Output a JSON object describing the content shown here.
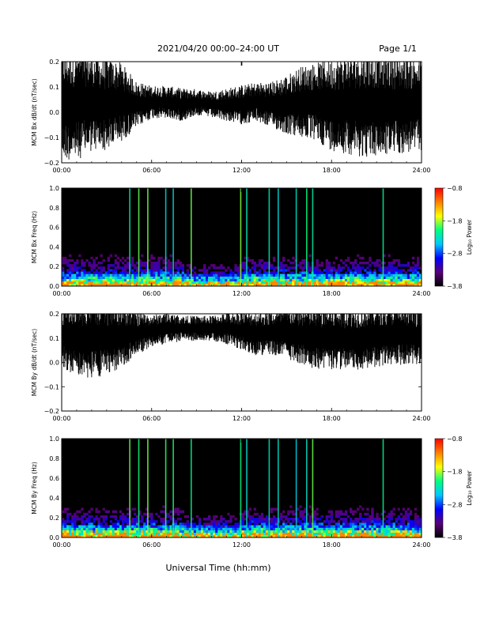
{
  "header": {
    "title": "2021/04/20  00:00–24:00 UT",
    "page": "Page 1/1"
  },
  "footer": {
    "xlabel": "Universal Time (hh:mm)"
  },
  "colors": {
    "trace": "#000000",
    "spectrogram_background": "#000000",
    "colormap": [
      "#000000",
      "#5a007a",
      "#0000ff",
      "#00c8ff",
      "#00ff80",
      "#ffff00",
      "#ff8000",
      "#ff0000"
    ]
  },
  "chart_data": [
    {
      "type": "line",
      "ylabel": "MCM Bx dB/dt (nT/sec)",
      "ylim": [
        -0.2,
        0.2
      ],
      "yticks": [
        "0.2",
        "0.1",
        "0.0",
        "−0.1",
        "−0.2"
      ],
      "xlim": [
        0,
        24
      ],
      "xticks": [
        "00:00",
        "06:00",
        "12:00",
        "18:00",
        "24:00"
      ],
      "series_description_points": {
        "x_hours": [
          0,
          1,
          2,
          3,
          4,
          5,
          6,
          7,
          8,
          9,
          10,
          11,
          12,
          13,
          14,
          15,
          16,
          17,
          18,
          19,
          20,
          21,
          22,
          23,
          24
        ],
        "center": [
          0.03,
          0.03,
          0.04,
          0.03,
          0.04,
          0.03,
          0.04,
          0.04,
          0.03,
          0.04,
          0.03,
          0.03,
          0.03,
          0.04,
          0.03,
          0.03,
          0.04,
          0.04,
          0.03,
          0.03,
          0.03,
          0.03,
          0.03,
          0.03,
          0.03
        ],
        "envelope": [
          0.17,
          0.17,
          0.15,
          0.14,
          0.12,
          0.07,
          0.05,
          0.05,
          0.05,
          0.04,
          0.04,
          0.05,
          0.06,
          0.06,
          0.07,
          0.09,
          0.11,
          0.12,
          0.14,
          0.15,
          0.16,
          0.16,
          0.15,
          0.15,
          0.14
        ]
      }
    },
    {
      "type": "heatmap",
      "ylabel": "MCM Bx Freq (Hz)",
      "ylim": [
        0.0,
        1.0
      ],
      "yticks": [
        "1.0",
        "0.8",
        "0.6",
        "0.4",
        "0.2",
        "0.0"
      ],
      "xlim": [
        0,
        24
      ],
      "xticks": [
        "00:00",
        "06:00",
        "12:00",
        "18:00",
        "24:00"
      ],
      "colorbar": {
        "label": "Log₁₀ Power",
        "ticks": [
          "−0.8",
          "−1.8",
          "−2.8",
          "−3.8"
        ],
        "range": [
          -3.8,
          -0.8
        ]
      }
    },
    {
      "type": "line",
      "ylabel": "MCM By dB/dt (nT/sec)",
      "ylim": [
        -0.2,
        0.2
      ],
      "yticks": [
        "0.2",
        "0.1",
        "0.0",
        "−0.1",
        "−0.2"
      ],
      "xlim": [
        0,
        24
      ],
      "xticks": [
        "00:00",
        "06:00",
        "12:00",
        "18:00",
        "24:00"
      ],
      "series_description_points": {
        "x_hours": [
          0,
          1,
          2,
          3,
          4,
          5,
          6,
          7,
          8,
          9,
          10,
          11,
          12,
          13,
          14,
          15,
          16,
          17,
          18,
          19,
          20,
          21,
          22,
          23,
          24
        ],
        "center": [
          0.11,
          0.1,
          0.1,
          0.1,
          0.11,
          0.12,
          0.13,
          0.14,
          0.14,
          0.14,
          0.14,
          0.14,
          0.13,
          0.12,
          0.12,
          0.12,
          0.11,
          0.1,
          0.1,
          0.1,
          0.1,
          0.11,
          0.11,
          0.11,
          0.11
        ],
        "envelope": [
          0.1,
          0.12,
          0.13,
          0.12,
          0.1,
          0.07,
          0.05,
          0.05,
          0.04,
          0.04,
          0.04,
          0.05,
          0.06,
          0.07,
          0.07,
          0.08,
          0.09,
          0.1,
          0.1,
          0.1,
          0.1,
          0.1,
          0.1,
          0.09,
          0.09
        ]
      }
    },
    {
      "type": "heatmap",
      "ylabel": "MCM By Freq (Hz)",
      "ylim": [
        0.0,
        1.0
      ],
      "yticks": [
        "1.0",
        "0.8",
        "0.6",
        "0.4",
        "0.2",
        "0.0"
      ],
      "xlim": [
        0,
        24
      ],
      "xticks": [
        "00:00",
        "06:00",
        "12:00",
        "18:00",
        "24:00"
      ],
      "colorbar": {
        "label": "Log₁₀ Power",
        "ticks": [
          "−0.8",
          "−1.8",
          "−2.8",
          "−3.8"
        ],
        "range": [
          -3.8,
          -0.8
        ]
      }
    }
  ]
}
